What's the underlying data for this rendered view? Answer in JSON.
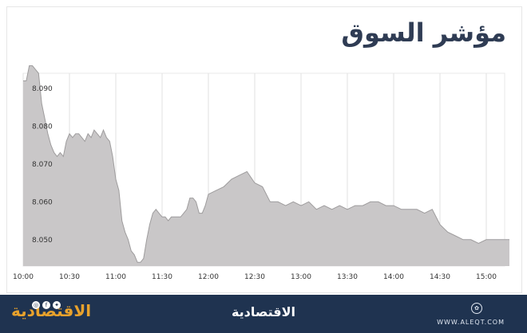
{
  "chart_data": {
    "type": "area",
    "title": "مؤشر السوق",
    "x_ticks": [
      "10:00",
      "10:30",
      "11:00",
      "11:30",
      "12:00",
      "12:30",
      "13:00",
      "13:30",
      "14:00",
      "14:30",
      "15:00"
    ],
    "y_ticks": [
      "8.050",
      "8.060",
      "8.070",
      "8.080",
      "8.090"
    ],
    "ylim": [
      8.043,
      8.094
    ],
    "grid": "vertical",
    "fill_color": "#c9c7c8",
    "line_color": "#9e9c9d",
    "series": [
      {
        "x": [
          "10:00",
          "10:02",
          "10:04",
          "10:06",
          "10:08",
          "10:10",
          "10:12",
          "10:14",
          "10:16",
          "10:18",
          "10:20",
          "10:22",
          "10:24",
          "10:26",
          "10:28",
          "10:30",
          "10:32",
          "10:34",
          "10:36",
          "10:38",
          "10:40",
          "10:42",
          "10:44",
          "10:46",
          "10:48",
          "10:50",
          "10:52",
          "10:54",
          "10:56",
          "10:58",
          "11:00",
          "11:02",
          "11:04",
          "11:06",
          "11:08",
          "11:10",
          "11:12",
          "11:14",
          "11:16",
          "11:18",
          "11:20",
          "11:22",
          "11:24",
          "11:26",
          "11:28",
          "11:30",
          "11:32",
          "11:34",
          "11:36",
          "11:38",
          "11:40",
          "11:42",
          "11:44",
          "11:46",
          "11:48",
          "11:50",
          "11:52",
          "11:54",
          "11:56",
          "11:58",
          "12:00",
          "12:05",
          "12:10",
          "12:15",
          "12:20",
          "12:25",
          "12:30",
          "12:35",
          "12:40",
          "12:45",
          "12:50",
          "12:55",
          "13:00",
          "13:05",
          "13:10",
          "13:15",
          "13:20",
          "13:25",
          "13:30",
          "13:35",
          "13:40",
          "13:45",
          "13:50",
          "13:55",
          "14:00",
          "14:05",
          "14:10",
          "14:15",
          "14:20",
          "14:25",
          "14:30",
          "14:35",
          "14:40",
          "14:45",
          "14:50",
          "14:55",
          "15:00",
          "15:05",
          "15:10",
          "15:15"
        ],
        "values": [
          8.092,
          8.092,
          8.096,
          8.096,
          8.095,
          8.094,
          8.086,
          8.082,
          8.078,
          8.075,
          8.073,
          8.072,
          8.073,
          8.072,
          8.076,
          8.078,
          8.077,
          8.078,
          8.078,
          8.077,
          8.076,
          8.078,
          8.077,
          8.079,
          8.078,
          8.077,
          8.079,
          8.077,
          8.076,
          8.072,
          8.066,
          8.063,
          8.055,
          8.052,
          8.05,
          8.047,
          8.046,
          8.044,
          8.044,
          8.045,
          8.05,
          8.054,
          8.057,
          8.058,
          8.057,
          8.056,
          8.056,
          8.055,
          8.056,
          8.056,
          8.056,
          8.056,
          8.057,
          8.058,
          8.061,
          8.061,
          8.06,
          8.057,
          8.057,
          8.059,
          8.062,
          8.063,
          8.064,
          8.066,
          8.067,
          8.068,
          8.065,
          8.064,
          8.06,
          8.06,
          8.059,
          8.06,
          8.059,
          8.06,
          8.058,
          8.059,
          8.058,
          8.059,
          8.058,
          8.059,
          8.059,
          8.06,
          8.06,
          8.059,
          8.059,
          8.058,
          8.058,
          8.058,
          8.057,
          8.058,
          8.054,
          8.052,
          8.051,
          8.05,
          8.05,
          8.049,
          8.05,
          8.05,
          8.05,
          8.05
        ]
      }
    ]
  },
  "footer": {
    "brand_left": "الاقتصادية",
    "social_icons": [
      "instagram-icon",
      "facebook-icon",
      "twitter-icon"
    ],
    "brand_center": "الاقتصادية",
    "url": "WWW.ALEQT.COM",
    "background": "#1f3350",
    "accent": "#e8a22c"
  }
}
